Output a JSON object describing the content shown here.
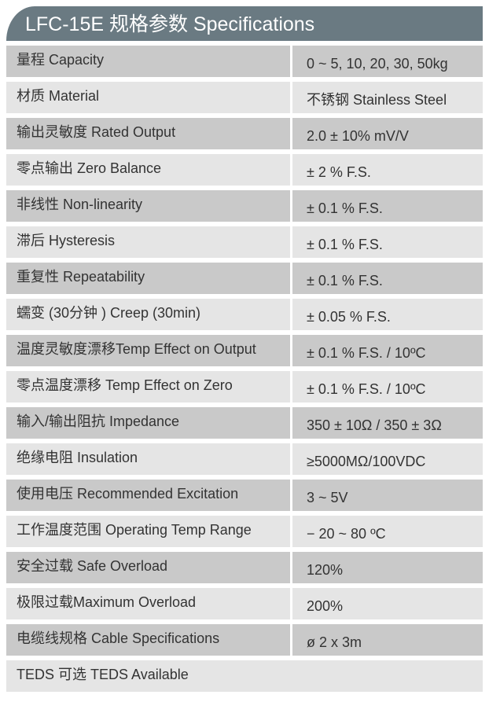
{
  "title": "LFC-15E 规格参数 Specifications",
  "rows": [
    {
      "label": "量程 Capacity",
      "value": "0 ~ 5, 10, 20, 30, 50kg"
    },
    {
      "label": "材质 Material",
      "value": "不锈钢 Stainless Steel"
    },
    {
      "label": "输出灵敏度 Rated Output",
      "value": "2.0 ± 10% mV/V"
    },
    {
      "label": "零点输出  Zero Balance",
      "value": "± 2 % F.S."
    },
    {
      "label": "非线性 Non-linearity",
      "value": "± 0.1 % F.S."
    },
    {
      "label": "滞后 Hysteresis",
      "value": "± 0.1 % F.S."
    },
    {
      "label": "重复性 Repeatability",
      "value": "± 0.1 % F.S."
    },
    {
      "label": "蠕变 (30分钟 ) Creep (30min)",
      "value": "± 0.05 % F.S."
    },
    {
      "label": "温度灵敏度漂移Temp Effect on Output",
      "value": "± 0.1 % F.S. / 10ºC"
    },
    {
      "label": "零点温度漂移 Temp Effect on Zero",
      "value": "± 0.1 % F.S. / 10ºC"
    },
    {
      "label": "输入/输出阻抗 Impedance",
      "value": "350 ± 10Ω  /  350 ± 3Ω"
    },
    {
      "label": "绝缘电阻  Insulation",
      "value": "≥5000MΩ/100VDC"
    },
    {
      "label": "使用电压 Recommended Excitation",
      "value": "3 ~ 5V"
    },
    {
      "label": "工作温度范围 Operating Temp  Range",
      "value": "− 20 ~ 80 ºC"
    },
    {
      "label": "安全过载 Safe Overload",
      "value": "120%"
    },
    {
      "label": "极限过载Maximum Overload",
      "value": "200%"
    },
    {
      "label": "电缆线规格 Cable Specifications",
      "value": "ø 2 x 3m"
    }
  ],
  "footer": "TEDS 可选 TEDS Available"
}
